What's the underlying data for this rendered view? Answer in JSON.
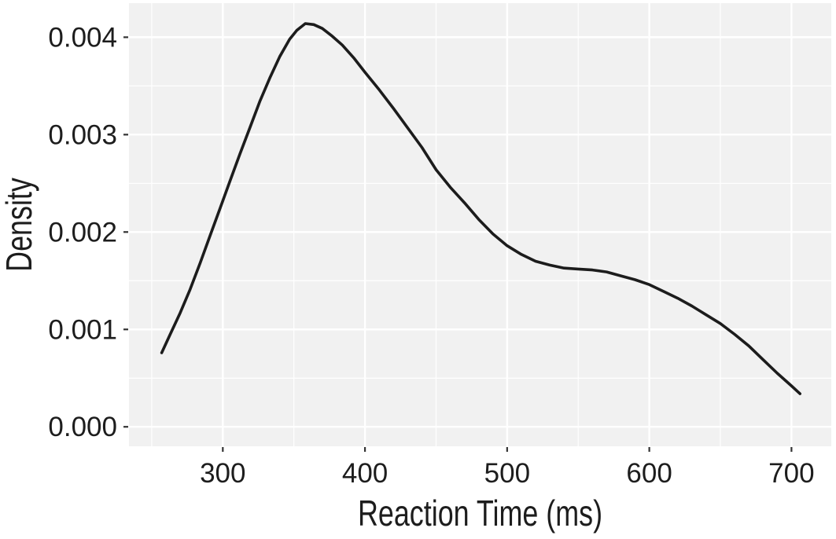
{
  "figure": {
    "kind": "density-plot",
    "background": "#ffffff"
  },
  "chart_data": {
    "type": "line",
    "subtype": "kernel-density-curve",
    "title": "",
    "xlabel": "Reaction Time (ms)",
    "ylabel": "Density",
    "legend": "none",
    "grid": "major and minor white gridlines on gray panel",
    "xlim": [
      234,
      728
    ],
    "ylim": [
      -0.0002,
      0.00435
    ],
    "x_ticks": [
      {
        "value": 300,
        "label": "300"
      },
      {
        "value": 400,
        "label": "400"
      },
      {
        "value": 500,
        "label": "500"
      },
      {
        "value": 600,
        "label": "600"
      },
      {
        "value": 700,
        "label": "700"
      }
    ],
    "y_ticks": [
      {
        "value": 0.0,
        "label": "0.000"
      },
      {
        "value": 0.001,
        "label": "0.001"
      },
      {
        "value": 0.002,
        "label": "0.002"
      },
      {
        "value": 0.003,
        "label": "0.003"
      },
      {
        "value": 0.004,
        "label": "0.004"
      }
    ],
    "x_minor_ticks": [
      250,
      350,
      450,
      550,
      650
    ],
    "y_minor_ticks": [
      0.0005,
      0.0015,
      0.0025,
      0.0035
    ],
    "series": [
      {
        "name": "density",
        "peak": {
          "x": 358,
          "y": 0.00414
        },
        "x": [
          257,
          263,
          270,
          277,
          284,
          291,
          298,
          305,
          312,
          319,
          326,
          333,
          340,
          347,
          352,
          358,
          364,
          370,
          377,
          384,
          392,
          400,
          410,
          420,
          430,
          440,
          450,
          460,
          470,
          480,
          490,
          500,
          510,
          520,
          530,
          540,
          550,
          560,
          570,
          580,
          590,
          600,
          610,
          620,
          630,
          640,
          650,
          660,
          670,
          680,
          690,
          700,
          706
        ],
        "y": [
          0.00076,
          0.00095,
          0.00117,
          0.00141,
          0.00168,
          0.00196,
          0.00224,
          0.00252,
          0.0028,
          0.00307,
          0.00334,
          0.00358,
          0.0038,
          0.00398,
          0.00407,
          0.00414,
          0.00413,
          0.00409,
          0.00401,
          0.00392,
          0.00379,
          0.00364,
          0.00346,
          0.00327,
          0.00307,
          0.00287,
          0.00264,
          0.00246,
          0.0023,
          0.00213,
          0.00198,
          0.00186,
          0.00177,
          0.0017,
          0.00166,
          0.00163,
          0.00162,
          0.00161,
          0.00159,
          0.00155,
          0.00151,
          0.00146,
          0.00139,
          0.00132,
          0.00124,
          0.00115,
          0.00106,
          0.00095,
          0.00083,
          0.00069,
          0.00055,
          0.00042,
          0.00034
        ]
      }
    ],
    "colors": {
      "line": "#1c1c1c",
      "panel": "#f1f1f1",
      "gridline": "#ffffff",
      "tick_mark": "#333333",
      "text": "#1d1d1d"
    }
  }
}
